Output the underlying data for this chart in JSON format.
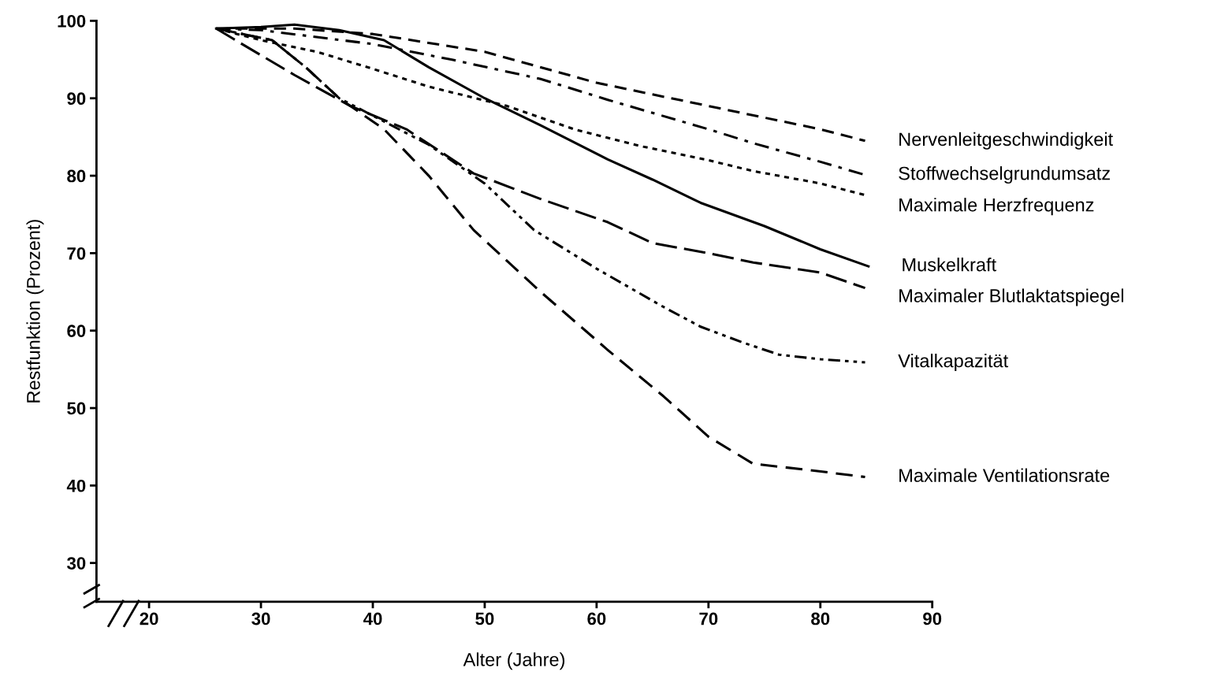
{
  "chart_data": {
    "type": "line",
    "xlabel": "Alter (Jahre)",
    "ylabel": "Restfunktion (Prozent)",
    "xlim": [
      15.3,
      90
    ],
    "ylim": [
      25,
      100
    ],
    "xticks": [
      20,
      30,
      40,
      50,
      60,
      70,
      80,
      90
    ],
    "yticks": [
      30,
      40,
      50,
      60,
      70,
      80,
      90,
      100
    ],
    "grid": false,
    "marker": "none",
    "series": [
      {
        "name": "Nervenleitgeschwindigkeit",
        "color": "#000000",
        "line_style": "dashed",
        "x": [
          26,
          33,
          40,
          50,
          60,
          70,
          80,
          84
        ],
        "values": [
          99,
          99,
          98.3,
          96,
          92,
          89,
          86,
          84.5
        ]
      },
      {
        "name": "Stoffwechselgrundumsatz",
        "color": "#000000",
        "line_style": "dashdot",
        "x": [
          26,
          30,
          40,
          47,
          55,
          61,
          70,
          74,
          80,
          84
        ],
        "values": [
          99,
          98.8,
          97,
          95,
          92.5,
          89.8,
          86,
          84.2,
          81.8,
          80.1
        ]
      },
      {
        "name": "Maximale Herzfrequenz",
        "color": "#000000",
        "line_style": "dotted",
        "x": [
          26,
          30,
          35,
          40,
          45,
          52,
          58,
          64,
          70,
          74,
          80,
          84
        ],
        "values": [
          99,
          97.5,
          96,
          93.8,
          91.5,
          89,
          86,
          83.8,
          82,
          80.6,
          79,
          77.5
        ]
      },
      {
        "name": "Muskelkraft",
        "color": "#000000",
        "line_style": "solid",
        "x": [
          26,
          30,
          33,
          37,
          41,
          45,
          50,
          55,
          61,
          65,
          69.3,
          75,
          80,
          84.3
        ],
        "values": [
          99,
          99.2,
          99.5,
          98.8,
          97.5,
          94,
          90,
          86.5,
          82.1,
          79.5,
          76.5,
          73.5,
          70.5,
          68.3
        ]
      },
      {
        "name": "Maximaler Blutlaktatspiegel",
        "color": "#000000",
        "line_style": "longdash",
        "x": [
          26,
          27.5,
          33,
          38,
          43,
          49,
          55,
          61,
          65,
          70,
          74,
          80,
          84
        ],
        "values": [
          99,
          97.7,
          93,
          89,
          86,
          80.3,
          77,
          74,
          71.3,
          70,
          68.8,
          67.5,
          65.5
        ]
      },
      {
        "name": "Vitalkapazität",
        "color": "#000000",
        "line_style": "dashdotdot",
        "x": [
          26,
          31,
          34,
          37,
          41,
          45,
          50,
          54.4,
          60,
          65.8,
          69.3,
          73,
          76.3,
          80,
          84
        ],
        "values": [
          99,
          97.5,
          94,
          90,
          87,
          84,
          79,
          73,
          68,
          63.2,
          60.5,
          58.5,
          56.9,
          56.3,
          55.9
        ]
      },
      {
        "name": "Maximale Ventilationsrate",
        "color": "#000000",
        "line_style": "dashed2",
        "x": [
          26,
          31,
          34,
          37,
          41,
          45,
          49,
          55,
          61,
          66,
          70,
          74,
          79,
          84
        ],
        "values": [
          99,
          97.5,
          94,
          90,
          86,
          80,
          73,
          65,
          57.5,
          51.5,
          46.3,
          42.8,
          42,
          41.1
        ]
      }
    ]
  }
}
